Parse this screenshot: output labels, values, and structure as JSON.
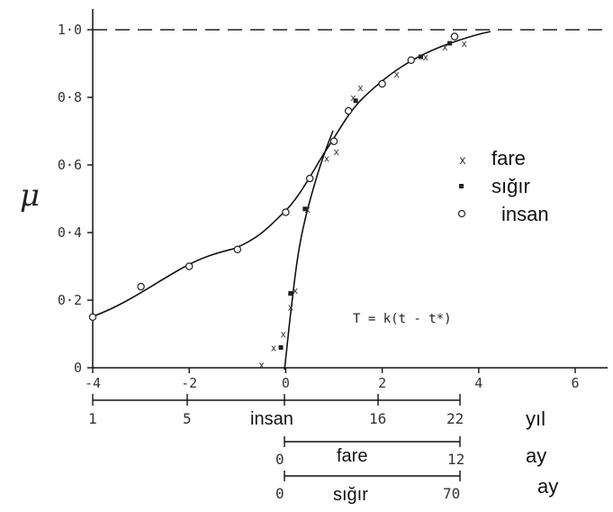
{
  "chart_data": {
    "type": "scatter",
    "ylabel": "μ",
    "xlim": [
      -4,
      7
    ],
    "ylim": [
      0,
      1.05
    ],
    "x_ticks": [
      "-4",
      "-2",
      "0",
      "2",
      "4",
      "6"
    ],
    "y_ticks": [
      "0",
      "0·2",
      "0·4",
      "0·6",
      "0·8",
      "1·0"
    ],
    "y_tick_values": [
      0,
      0.2,
      0.4,
      0.6,
      0.8,
      1.0
    ],
    "x_tick_values": [
      -4,
      -2,
      0,
      2,
      4,
      6
    ],
    "asymptote": 1.0,
    "grid": false,
    "legend_position": "right",
    "formula": "T = k(t - t*)",
    "series": [
      {
        "name": "fare",
        "marker": "x",
        "points": [
          [
            -0.5,
            0.01
          ],
          [
            -0.25,
            0.06
          ],
          [
            -0.05,
            0.1
          ],
          [
            0.1,
            0.18
          ],
          [
            0.2,
            0.23
          ],
          [
            0.45,
            0.47
          ],
          [
            0.85,
            0.62
          ],
          [
            1.05,
            0.64
          ],
          [
            1.4,
            0.8
          ],
          [
            1.55,
            0.83
          ],
          [
            2.3,
            0.87
          ],
          [
            2.9,
            0.92
          ],
          [
            3.3,
            0.95
          ],
          [
            3.7,
            0.96
          ]
        ]
      },
      {
        "name": "sığır",
        "marker": "filled",
        "points": [
          [
            -0.1,
            0.06
          ],
          [
            0.1,
            0.22
          ],
          [
            0.4,
            0.47
          ],
          [
            1.45,
            0.79
          ],
          [
            2.8,
            0.92
          ],
          [
            3.4,
            0.96
          ]
        ]
      },
      {
        "name": "insan",
        "marker": "circle",
        "points": [
          [
            -4,
            0.15
          ],
          [
            -3,
            0.24
          ],
          [
            -2,
            0.3
          ],
          [
            -1,
            0.35
          ],
          [
            0,
            0.46
          ],
          [
            0.5,
            0.56
          ],
          [
            1.0,
            0.67
          ],
          [
            1.3,
            0.76
          ],
          [
            2.0,
            0.84
          ],
          [
            2.6,
            0.91
          ],
          [
            3.5,
            0.98
          ]
        ]
      }
    ],
    "secondary_scales": [
      {
        "label": "insan",
        "ticks": [
          "1",
          "5",
          "16",
          "22"
        ],
        "unit": "yıl"
      },
      {
        "label": "fare",
        "ticks": [
          "0",
          "12"
        ],
        "unit": "ay"
      },
      {
        "label": "sığır",
        "ticks": [
          "0",
          "70"
        ],
        "unit": "ay"
      }
    ]
  }
}
